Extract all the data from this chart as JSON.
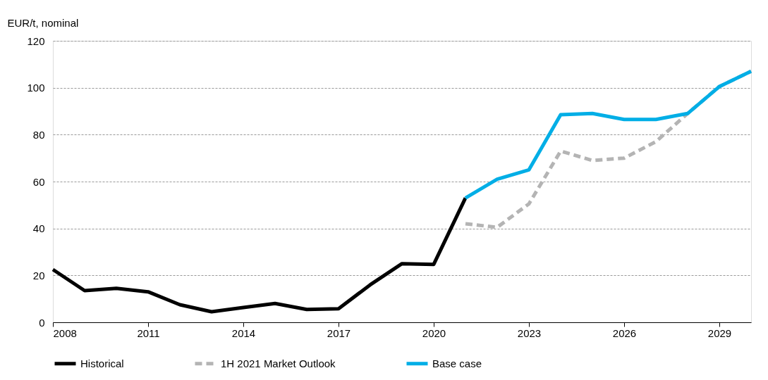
{
  "chart_data": {
    "type": "line",
    "ylabel": "EUR/t, nominal",
    "xlim": [
      2008,
      2030
    ],
    "xticks": [
      2008,
      2011,
      2014,
      2017,
      2020,
      2023,
      2026,
      2029
    ],
    "ylim": [
      0,
      120
    ],
    "yticks": [
      0,
      20,
      40,
      60,
      80,
      100,
      120
    ],
    "grid": "y",
    "legend": "bottom",
    "marker": "none",
    "series": [
      {
        "name": "Historical",
        "color": "#000000",
        "line_style": "solid",
        "x": [
          2008,
          2009,
          2010,
          2011,
          2012,
          2013,
          2014,
          2015,
          2016,
          2017,
          2018,
          2019,
          2020,
          2021
        ],
        "values": [
          22.5,
          13.5,
          14.5,
          13,
          7.5,
          4.5,
          6.3,
          8,
          5.5,
          5.8,
          16,
          25,
          24.7,
          53
        ]
      },
      {
        "name": "1H 2021 Market Outlook",
        "color": "#b4b4b4",
        "line_style": "dashed",
        "x": [
          2021,
          2022,
          2023,
          2024,
          2025,
          2026,
          2027,
          2028,
          2029,
          2030
        ],
        "values": [
          42,
          40.5,
          50.5,
          73,
          69,
          70,
          77,
          89,
          100.5,
          107
        ]
      },
      {
        "name": "Base case",
        "color": "#00aee6",
        "line_style": "solid",
        "x": [
          2021,
          2022,
          2023,
          2024,
          2025,
          2026,
          2027,
          2028,
          2029,
          2030
        ],
        "values": [
          53,
          61,
          65,
          88.5,
          89,
          86.5,
          86.5,
          89,
          100.5,
          107
        ]
      }
    ]
  }
}
